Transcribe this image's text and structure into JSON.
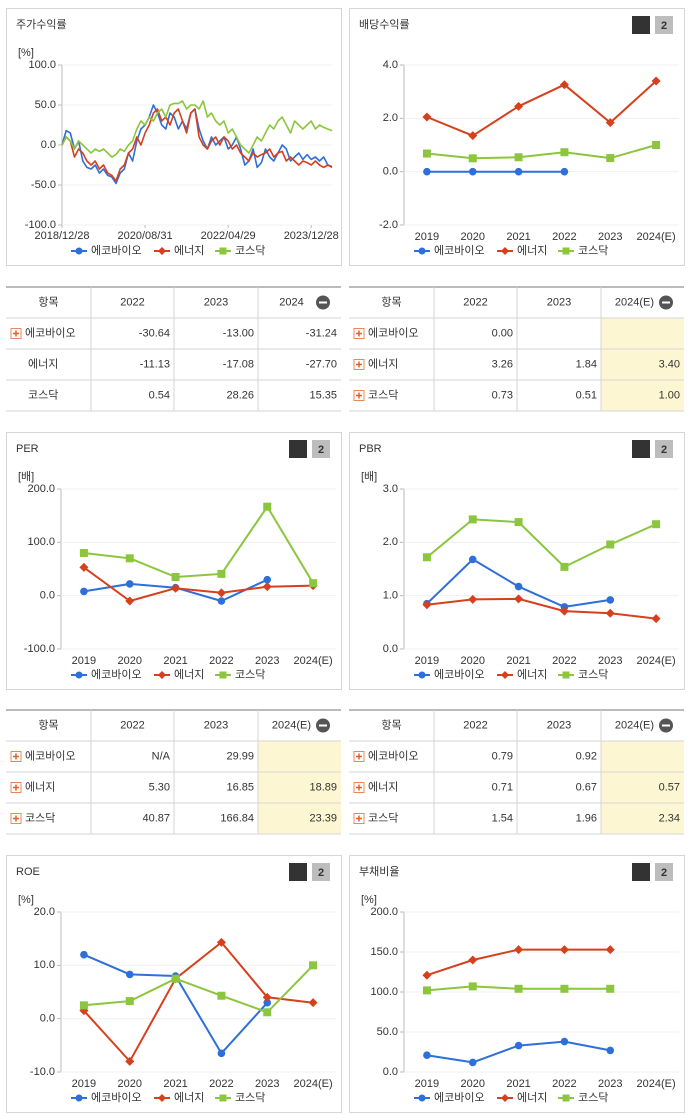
{
  "buttons": [
    "1",
    "2"
  ],
  "chart_data": [
    {
      "type": "line",
      "title": "주가수익률",
      "unit": "[%]",
      "markers": false,
      "xlim": [
        0,
        65
      ],
      "xticks": [
        {
          "value": 0,
          "label": "2018/12/28"
        },
        {
          "value": 20,
          "label": "2020/08/31"
        },
        {
          "value": 40,
          "label": "2022/04/29"
        },
        {
          "value": 60,
          "label": "2023/12/28"
        }
      ],
      "ylim": [
        -100,
        100
      ],
      "yticks": [
        {
          "value": 100,
          "label": "100.0"
        },
        {
          "value": 50,
          "label": "50.0"
        },
        {
          "value": 0,
          "label": "0.0"
        },
        {
          "value": -50,
          "label": "-50.0"
        },
        {
          "value": -100,
          "label": "-100.0"
        }
      ],
      "series": [
        {
          "name": "에코바이오",
          "color": "#2e6fd9",
          "values": [
            0,
            18,
            15,
            -5,
            5,
            -20,
            -28,
            -30,
            -25,
            -35,
            -30,
            -38,
            -40,
            -48,
            -35,
            -30,
            -10,
            -20,
            5,
            20,
            25,
            35,
            50,
            40,
            25,
            20,
            40,
            35,
            20,
            30,
            20,
            40,
            45,
            20,
            5,
            -5,
            10,
            0,
            5,
            10,
            -5,
            0,
            10,
            -5,
            -25,
            -20,
            -5,
            -28,
            -22,
            -5,
            -15,
            -20,
            -10,
            0,
            -5,
            -20,
            -15,
            -10,
            -18,
            -12,
            -18,
            -15,
            -20,
            -15,
            -25,
            -27
          ]
        },
        {
          "name": "에너지",
          "color": "#d6401c",
          "values": [
            0,
            10,
            5,
            -15,
            -5,
            -10,
            -20,
            -25,
            -20,
            -30,
            -25,
            -35,
            -38,
            -45,
            -30,
            -25,
            -10,
            -5,
            10,
            0,
            15,
            25,
            40,
            45,
            30,
            35,
            25,
            40,
            45,
            30,
            15,
            40,
            45,
            10,
            0,
            -5,
            5,
            10,
            0,
            10,
            5,
            -5,
            0,
            -10,
            -15,
            -20,
            -10,
            -15,
            -12,
            -10,
            -5,
            -15,
            -10,
            -8,
            -20,
            -15,
            -20,
            -25,
            -20,
            -22,
            -25,
            -20,
            -25,
            -28,
            -25,
            -28
          ]
        },
        {
          "name": "코스닥",
          "color": "#8cc63e",
          "values": [
            0,
            10,
            5,
            -5,
            5,
            0,
            -5,
            -10,
            -5,
            -8,
            -5,
            -10,
            -15,
            -12,
            -5,
            -8,
            0,
            5,
            20,
            30,
            25,
            35,
            30,
            40,
            45,
            35,
            50,
            52,
            52,
            55,
            45,
            50,
            50,
            45,
            55,
            35,
            40,
            30,
            25,
            30,
            15,
            20,
            10,
            0,
            -5,
            -10,
            0,
            10,
            5,
            15,
            25,
            20,
            30,
            35,
            25,
            15,
            30,
            25,
            20,
            25,
            30,
            20,
            25,
            22,
            20,
            18
          ]
        }
      ]
    },
    {
      "type": "line",
      "title": "배당수익률",
      "markers": true,
      "categories": [
        "2019",
        "2020",
        "2021",
        "2022",
        "2023",
        "2024(E)"
      ],
      "ylim": [
        -2,
        4
      ],
      "yticks": [
        {
          "value": 4,
          "label": "4.0"
        },
        {
          "value": 2,
          "label": "2.0"
        },
        {
          "value": 0,
          "label": "0.0"
        },
        {
          "value": -2,
          "label": "-2.0"
        }
      ],
      "series": [
        {
          "name": "에코바이오",
          "color": "#2e6fd9",
          "values": [
            0,
            0,
            0,
            0,
            null,
            null
          ]
        },
        {
          "name": "에너지",
          "color": "#d6401c",
          "values": [
            2.05,
            1.35,
            2.45,
            3.26,
            1.84,
            3.4
          ]
        },
        {
          "name": "코스닥",
          "color": "#8cc63e",
          "values": [
            0.68,
            0.5,
            0.54,
            0.73,
            0.51,
            1.0
          ]
        }
      ]
    },
    {
      "type": "line",
      "title": "PER",
      "unit": "[배]",
      "markers": true,
      "categories": [
        "2019",
        "2020",
        "2021",
        "2022",
        "2023",
        "2024(E)"
      ],
      "ylim": [
        -100,
        200
      ],
      "yticks": [
        {
          "value": 200,
          "label": "200.0"
        },
        {
          "value": 100,
          "label": "100.0"
        },
        {
          "value": 0,
          "label": "0.0"
        },
        {
          "value": -100,
          "label": "-100.0"
        }
      ],
      "series": [
        {
          "name": "에코바이오",
          "color": "#2e6fd9",
          "values": [
            8,
            22,
            15,
            -10,
            29.99,
            null
          ]
        },
        {
          "name": "에너지",
          "color": "#d6401c",
          "values": [
            53,
            -10,
            14,
            5.3,
            16.85,
            18.89
          ]
        },
        {
          "name": "코스닥",
          "color": "#8cc63e",
          "values": [
            80,
            70,
            35,
            40.87,
            166.84,
            23.39
          ]
        }
      ]
    },
    {
      "type": "line",
      "title": "PBR",
      "unit": "[배]",
      "markers": true,
      "categories": [
        "2019",
        "2020",
        "2021",
        "2022",
        "2023",
        "2024(E)"
      ],
      "ylim": [
        0,
        3
      ],
      "yticks": [
        {
          "value": 3,
          "label": "3.0"
        },
        {
          "value": 2,
          "label": "2.0"
        },
        {
          "value": 1,
          "label": "1.0"
        },
        {
          "value": 0,
          "label": "0.0"
        }
      ],
      "series": [
        {
          "name": "에코바이오",
          "color": "#2e6fd9",
          "values": [
            0.85,
            1.68,
            1.17,
            0.79,
            0.92,
            null
          ]
        },
        {
          "name": "에너지",
          "color": "#d6401c",
          "values": [
            0.83,
            0.93,
            0.94,
            0.71,
            0.67,
            0.57
          ]
        },
        {
          "name": "코스닥",
          "color": "#8cc63e",
          "values": [
            1.72,
            2.43,
            2.38,
            1.54,
            1.96,
            2.34
          ]
        }
      ]
    },
    {
      "type": "line",
      "title": "ROE",
      "unit": "[%]",
      "markers": true,
      "categories": [
        "2019",
        "2020",
        "2021",
        "2022",
        "2023",
        "2024(E)"
      ],
      "ylim": [
        -10,
        20
      ],
      "yticks": [
        {
          "value": 20,
          "label": "20.0"
        },
        {
          "value": 10,
          "label": "10.0"
        },
        {
          "value": 0,
          "label": "0.0"
        },
        {
          "value": -10,
          "label": "-10.0"
        }
      ],
      "series": [
        {
          "name": "에코바이오",
          "color": "#2e6fd9",
          "values": [
            12,
            8.3,
            8,
            -6.5,
            3,
            null
          ]
        },
        {
          "name": "에너지",
          "color": "#d6401c",
          "values": [
            1.5,
            -8,
            7.5,
            14.3,
            4,
            3
          ]
        },
        {
          "name": "코스닥",
          "color": "#8cc63e",
          "values": [
            2.5,
            3.3,
            7.5,
            4.3,
            1.2,
            10
          ]
        }
      ]
    },
    {
      "type": "line",
      "title": "부채비율",
      "unit": "[%]",
      "markers": true,
      "categories": [
        "2019",
        "2020",
        "2021",
        "2022",
        "2023",
        "2024(E)"
      ],
      "ylim": [
        0,
        200
      ],
      "yticks": [
        {
          "value": 200,
          "label": "200.0"
        },
        {
          "value": 150,
          "label": "150.0"
        },
        {
          "value": 100,
          "label": "100.0"
        },
        {
          "value": 50,
          "label": "50.0"
        },
        {
          "value": 0,
          "label": "0.0"
        }
      ],
      "series": [
        {
          "name": "에코바이오",
          "color": "#2e6fd9",
          "values": [
            21,
            12,
            33,
            38,
            27,
            null
          ]
        },
        {
          "name": "에너지",
          "color": "#d6401c",
          "values": [
            121,
            140,
            153,
            153,
            153,
            null
          ]
        },
        {
          "name": "코스닥",
          "color": "#8cc63e",
          "values": [
            102,
            107,
            104,
            104,
            104,
            null
          ]
        }
      ]
    }
  ],
  "tables": [
    {
      "header": [
        "항목",
        "2022",
        "2023",
        "2024"
      ],
      "rows": [
        {
          "label": "에코바이오",
          "values": [
            "-30.64",
            "-13.00",
            "-31.24"
          ]
        },
        {
          "label": "에너지",
          "values": [
            "-11.13",
            "-17.08",
            "-27.70"
          ]
        },
        {
          "label": "코스닥",
          "values": [
            "0.54",
            "28.26",
            "15.35"
          ]
        }
      ]
    },
    {
      "header": [
        "항목",
        "2022",
        "2023",
        "2024(E)"
      ],
      "rows": [
        {
          "label": "에코바이오",
          "values": [
            "0.00",
            null,
            null
          ]
        },
        {
          "label": "에너지",
          "values": [
            "3.26",
            "1.84",
            "3.40"
          ]
        },
        {
          "label": "코스닥",
          "values": [
            "0.73",
            "0.51",
            "1.00"
          ]
        }
      ]
    },
    {
      "header": [
        "항목",
        "2022",
        "2023",
        "2024(E)"
      ],
      "rows": [
        {
          "label": "에코바이오",
          "values": [
            "N/A",
            "29.99",
            null
          ]
        },
        {
          "label": "에너지",
          "values": [
            "5.30",
            "16.85",
            "18.89"
          ]
        },
        {
          "label": "코스닥",
          "values": [
            "40.87",
            "166.84",
            "23.39"
          ]
        }
      ]
    },
    {
      "header": [
        "항목",
        "2022",
        "2023",
        "2024(E)"
      ],
      "rows": [
        {
          "label": "에코바이오",
          "values": [
            "0.79",
            "0.92",
            null
          ]
        },
        {
          "label": "에너지",
          "values": [
            "0.71",
            "0.67",
            "0.57"
          ]
        },
        {
          "label": "코스닥",
          "values": [
            "1.54",
            "1.96",
            "2.34"
          ]
        }
      ]
    }
  ]
}
